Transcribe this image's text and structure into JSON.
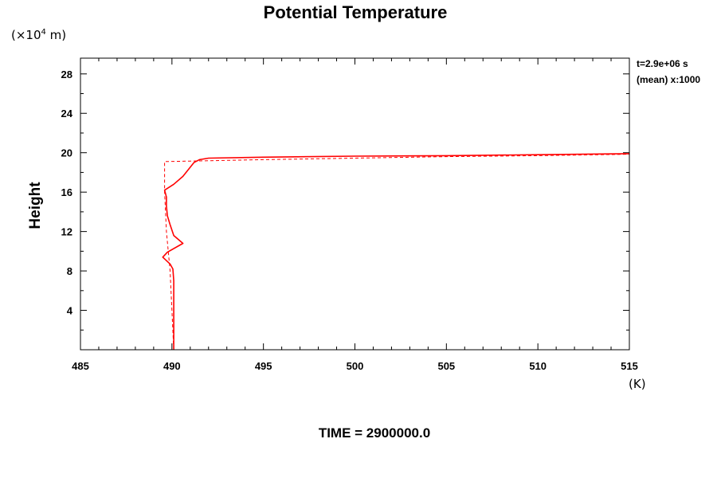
{
  "chart_data": {
    "type": "line",
    "title": "Potential Temperature",
    "ylabel": "Height",
    "yunits_prefix": "(×10",
    "yunits_exp": "4",
    "yunits_suffix": " m)",
    "xunits": "(K)",
    "xlim": [
      485,
      515
    ],
    "ylim": [
      0,
      29.6
    ],
    "xticks": [
      485,
      490,
      495,
      500,
      505,
      510,
      515
    ],
    "xtick_labels": [
      "485",
      "490",
      "495",
      "500",
      "505",
      "510",
      "515"
    ],
    "yticks": [
      4,
      8,
      12,
      16,
      20,
      24,
      28
    ],
    "ytick_labels": [
      "4",
      "8",
      "12",
      "16",
      "20",
      "24",
      "28"
    ],
    "annotations": [
      "t=2.9e+06 s",
      "(mean) x:1000"
    ],
    "footer": "TIME = 2900000.0",
    "series": [
      {
        "style": "solid",
        "color": "#ff0000",
        "points": [
          [
            490.1,
            0
          ],
          [
            490.1,
            4
          ],
          [
            490.1,
            7
          ],
          [
            490.05,
            8.2
          ],
          [
            489.9,
            8.7
          ],
          [
            489.5,
            9.4
          ],
          [
            489.75,
            9.9
          ],
          [
            490.6,
            10.8
          ],
          [
            490.1,
            11.6
          ],
          [
            489.9,
            12.7
          ],
          [
            489.75,
            13.6
          ],
          [
            489.7,
            14.6
          ],
          [
            489.7,
            15.5
          ],
          [
            489.6,
            16.2
          ],
          [
            490.1,
            16.8
          ],
          [
            490.6,
            17.6
          ],
          [
            490.9,
            18.3
          ],
          [
            491.2,
            19.0
          ],
          [
            491.5,
            19.3
          ],
          [
            492,
            19.45
          ],
          [
            495,
            19.55
          ],
          [
            500,
            19.65
          ],
          [
            505,
            19.7
          ],
          [
            510,
            19.8
          ],
          [
            515,
            19.9
          ]
        ]
      },
      {
        "style": "dashed",
        "color": "#ff0000",
        "points": [
          [
            490.1,
            0
          ],
          [
            490.0,
            4
          ],
          [
            489.9,
            8
          ],
          [
            489.8,
            10
          ],
          [
            489.7,
            12
          ],
          [
            489.6,
            16
          ],
          [
            489.6,
            19.1
          ],
          [
            491,
            19.15
          ],
          [
            495,
            19.3
          ],
          [
            500,
            19.45
          ],
          [
            505,
            19.6
          ],
          [
            510,
            19.7
          ],
          [
            515,
            19.85
          ]
        ]
      }
    ]
  }
}
